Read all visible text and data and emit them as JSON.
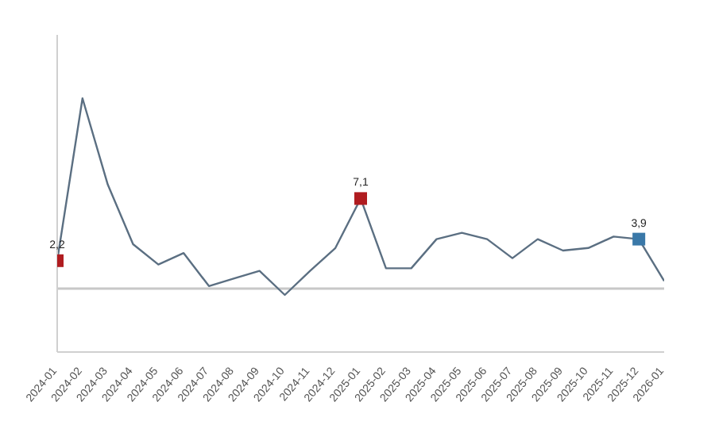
{
  "chart_data": {
    "type": "line",
    "categories": [
      "2024-01",
      "2024-02",
      "2024-03",
      "2024-04",
      "2024-05",
      "2024-06",
      "2024-07",
      "2024-08",
      "2024-09",
      "2024-10",
      "2024-11",
      "2024-12",
      "2025-01",
      "2025-02",
      "2025-03",
      "2025-04",
      "2025-05",
      "2025-06",
      "2025-07",
      "2025-08",
      "2025-09",
      "2025-10",
      "2025-11",
      "2025-12",
      "2026-01"
    ],
    "series": [
      {
        "type": "line",
        "color": "#5b6f82",
        "marker": "none",
        "values": [
          2.2,
          15.0,
          8.2,
          3.5,
          1.9,
          2.8,
          0.2,
          0.8,
          1.4,
          -0.5,
          1.4,
          3.2,
          7.1,
          1.6,
          1.6,
          3.9,
          4.4,
          3.9,
          2.4,
          3.9,
          3.0,
          3.2,
          4.1,
          3.9,
          0.6
        ]
      },
      {
        "type": "scatter",
        "marker": "square",
        "colors": [
          "#b01c20",
          null,
          null,
          null,
          null,
          null,
          null,
          null,
          null,
          null,
          null,
          null,
          "#b01c20",
          null,
          null,
          null,
          null,
          null,
          null,
          null,
          null,
          null,
          null,
          "#3a78a8",
          null
        ],
        "values": [
          2.2,
          null,
          null,
          null,
          null,
          null,
          null,
          null,
          null,
          null,
          null,
          null,
          7.1,
          null,
          null,
          null,
          null,
          null,
          null,
          null,
          null,
          null,
          null,
          3.9,
          null
        ],
        "value_labels": [
          "2,2",
          null,
          null,
          null,
          null,
          null,
          null,
          null,
          null,
          null,
          null,
          null,
          "7,1",
          null,
          null,
          null,
          null,
          null,
          null,
          null,
          null,
          null,
          null,
          "3,9",
          null
        ]
      }
    ],
    "ylim": [
      -5,
      20
    ],
    "tick_labels": "x",
    "grid": false,
    "legend": false,
    "ref_lines": [
      {
        "axis": "y",
        "value": 0,
        "color": "#c8c8c8"
      }
    ]
  }
}
